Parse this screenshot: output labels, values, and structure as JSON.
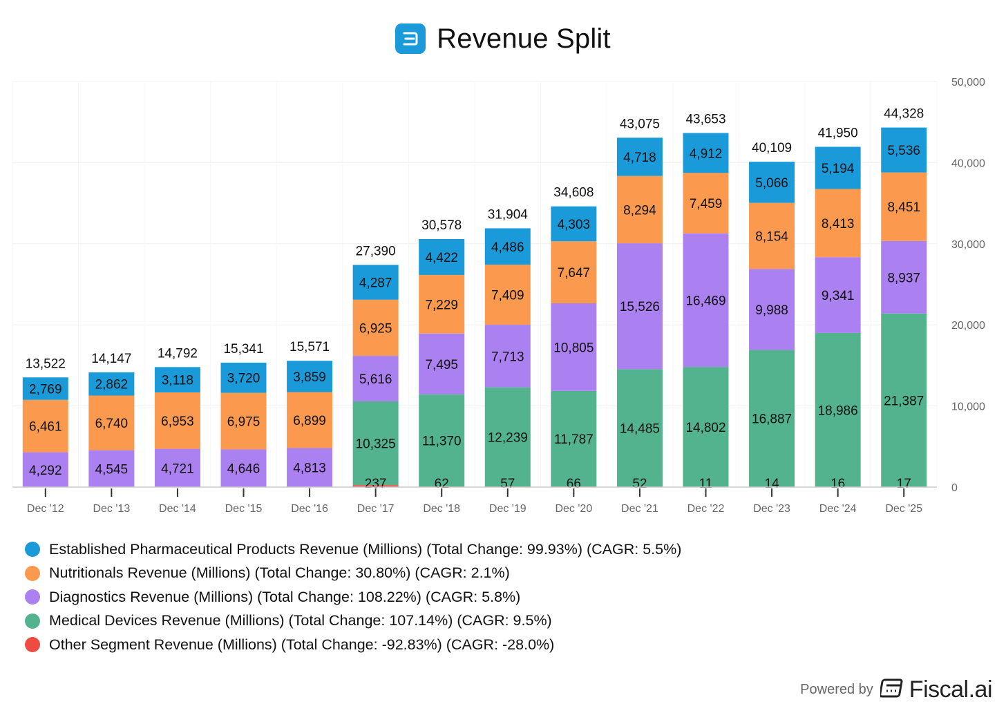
{
  "title": "Revenue Split",
  "footer": {
    "powered_by": "Powered by",
    "brand": "Fiscal.ai"
  },
  "colors": {
    "established": "#1a9ad9",
    "nutritionals": "#fb9a4f",
    "diagnostics": "#ab80f0",
    "medical": "#52b38e",
    "other": "#f04b43",
    "grid": "#f0f0f0",
    "axis": "#cccccc",
    "tick_text": "#666666"
  },
  "legend": [
    {
      "key": "established",
      "label": "Established Pharmaceutical Products Revenue (Millions) (Total Change: 99.93%) (CAGR: 5.5%)"
    },
    {
      "key": "nutritionals",
      "label": "Nutritionals Revenue (Millions) (Total Change: 30.80%) (CAGR: 2.1%)"
    },
    {
      "key": "diagnostics",
      "label": "Diagnostics Revenue (Millions) (Total Change: 108.22%) (CAGR: 5.8%)"
    },
    {
      "key": "medical",
      "label": "Medical Devices Revenue (Millions) (Total Change: 107.14%) (CAGR: 9.5%)"
    },
    {
      "key": "other",
      "label": "Other Segment Revenue (Millions) (Total Change: -92.83%) (CAGR: -28.0%)"
    }
  ],
  "chart_data": {
    "type": "bar",
    "stacked": true,
    "title": "Revenue Split",
    "categories": [
      "Dec '12",
      "Dec '13",
      "Dec '14",
      "Dec '15",
      "Dec '16",
      "Dec '17",
      "Dec '18",
      "Dec '19",
      "Dec '20",
      "Dec '21",
      "Dec '22",
      "Dec '23",
      "Dec '24",
      "Dec '25"
    ],
    "series": [
      {
        "key": "other",
        "name": "Other Segment Revenue (Millions)",
        "values": [
          null,
          null,
          null,
          null,
          null,
          237,
          62,
          57,
          66,
          52,
          11,
          14,
          16,
          17
        ]
      },
      {
        "key": "medical",
        "name": "Medical Devices Revenue (Millions)",
        "values": [
          null,
          null,
          null,
          null,
          null,
          10325,
          11370,
          12239,
          11787,
          14485,
          14802,
          16887,
          18986,
          21387
        ]
      },
      {
        "key": "diagnostics",
        "name": "Diagnostics Revenue (Millions)",
        "values": [
          4292,
          4545,
          4721,
          4646,
          4813,
          5616,
          7495,
          7713,
          10805,
          15526,
          16469,
          9988,
          9341,
          8937
        ]
      },
      {
        "key": "nutritionals",
        "name": "Nutritionals Revenue (Millions)",
        "values": [
          6461,
          6740,
          6953,
          6975,
          6899,
          6925,
          7229,
          7409,
          7647,
          8294,
          7459,
          8154,
          8413,
          8451
        ]
      },
      {
        "key": "established",
        "name": "Established Pharmaceutical Products Revenue (Millions)",
        "values": [
          2769,
          2862,
          3118,
          3720,
          3859,
          4287,
          4422,
          4486,
          4303,
          4718,
          4912,
          5066,
          5194,
          5536
        ]
      }
    ],
    "totals": [
      13522,
      14147,
      14792,
      15341,
      15571,
      27390,
      30578,
      31904,
      34608,
      43075,
      43653,
      40109,
      41950,
      44328
    ],
    "yticks": [
      0,
      10000,
      20000,
      30000,
      40000,
      50000
    ],
    "ylim": [
      0,
      50000
    ],
    "yaxis_position": "right",
    "grid": true,
    "legend_position": "bottom-left"
  }
}
